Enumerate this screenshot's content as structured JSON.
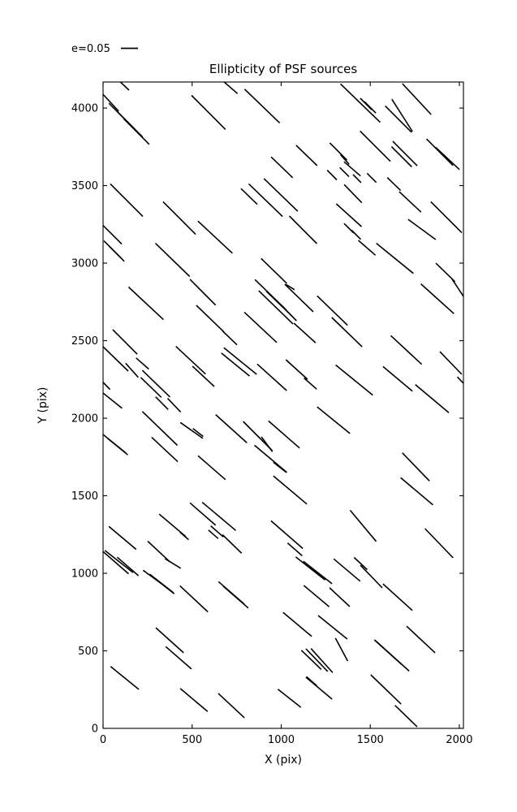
{
  "title": "Ellipticity of PSF sources",
  "legend": {
    "label": "e=0.05",
    "sample_e": 0.05
  },
  "chart_data": {
    "type": "scatter",
    "mark": "whisker-line",
    "title": "Ellipticity of PSF sources",
    "encoding": "Each line segment is a PSF source; segment length is proportional to ellipticity e (legend shows e=0.05); segment orientation is the ellipticity position angle theta (degrees, measured from +X axis).",
    "legend": {
      "label": "e=0.05",
      "sample_e": 0.05
    },
    "axes": {
      "xlabel": "X (pix)",
      "ylabel": "Y (pix)",
      "xlim": [
        0,
        2023
      ],
      "ylim": [
        0,
        4168
      ],
      "xticks": [
        0,
        500,
        1000,
        1500,
        2000
      ],
      "yticks": [
        0,
        500,
        1000,
        1500,
        2000,
        2500,
        3000,
        3500,
        4000
      ],
      "grid": false,
      "frame": true
    },
    "whisker_format": [
      "x_pix",
      "y_pix",
      "ellipticity_e",
      "theta_deg"
    ],
    "whiskers": [
      [
        114,
        4150,
        0.048,
        -47
      ],
      [
        39,
        4040,
        0.078,
        -51
      ],
      [
        105,
        3948,
        0.112,
        -49
      ],
      [
        150,
        3896,
        0.112,
        -49
      ],
      [
        187,
        3849,
        0.112,
        -49
      ],
      [
        592,
        3972,
        0.148,
        -49
      ],
      [
        132,
        3406,
        0.142,
        -49
      ],
      [
        428,
        3291,
        0.142,
        -49
      ],
      [
        629,
        3168,
        0.145,
        -47
      ],
      [
        48,
        3188,
        0.088,
        -49
      ],
      [
        55,
        3086,
        0.078,
        -49
      ],
      [
        77,
        3060,
        0.065,
        -49
      ],
      [
        715,
        4133,
        0.058,
        -45
      ],
      [
        893,
        4013,
        0.15,
        -48
      ],
      [
        1004,
        3618,
        0.092,
        -48
      ],
      [
        1143,
        3694,
        0.09,
        -48
      ],
      [
        1321,
        3720,
        0.075,
        -49
      ],
      [
        1285,
        3568,
        0.042,
        -49
      ],
      [
        1355,
        3587,
        0.04,
        -49
      ],
      [
        913,
        3406,
        0.145,
        -48
      ],
      [
        998,
        3440,
        0.145,
        -48
      ],
      [
        820,
        3430,
        0.07,
        -48
      ],
      [
        1123,
        3215,
        0.12,
        -49
      ],
      [
        1380,
        3309,
        0.105,
        -46
      ],
      [
        1380,
        3225,
        0.042,
        -49
      ],
      [
        1421,
        3183,
        0.04,
        -49
      ],
      [
        1444,
        4032,
        0.17,
        -48
      ],
      [
        1476,
        4026,
        0.05,
        -49
      ],
      [
        1499,
        4005,
        0.05,
        -49
      ],
      [
        1761,
        4058,
        0.13,
        -51
      ],
      [
        1679,
        3953,
        0.118,
        -61
      ],
      [
        1658,
        3929,
        0.115,
        -49
      ],
      [
        1528,
        3754,
        0.132,
        -49
      ],
      [
        1695,
        3707,
        0.107,
        -49
      ],
      [
        1676,
        3686,
        0.088,
        -49
      ],
      [
        1890,
        3715,
        0.115,
        -49
      ],
      [
        1934,
        3675,
        0.1,
        -47
      ],
      [
        1357,
        3668,
        0.04,
        -52
      ],
      [
        1399,
        3608,
        0.067,
        -45
      ],
      [
        1403,
        3448,
        0.078,
        -50
      ],
      [
        1426,
        3545,
        0.035,
        -49
      ],
      [
        1508,
        3550,
        0.04,
        -49
      ],
      [
        1633,
        3510,
        0.057,
        -48
      ],
      [
        1724,
        3395,
        0.092,
        -47
      ],
      [
        1927,
        3296,
        0.135,
        -49
      ],
      [
        1790,
        3217,
        0.105,
        -40
      ],
      [
        390,
        3021,
        0.147,
        -48
      ],
      [
        560,
        2812,
        0.112,
        -49
      ],
      [
        241,
        2741,
        0.147,
        -47
      ],
      [
        601,
        2642,
        0.118,
        -48
      ],
      [
        123,
        2492,
        0.107,
        -49
      ],
      [
        64,
        2390,
        0.118,
        -48
      ],
      [
        221,
        2353,
        0.052,
        -45
      ],
      [
        162,
        2309,
        0.058,
        -52
      ],
      [
        298,
        2223,
        0.118,
        -48
      ],
      [
        269,
        2199,
        0.088,
        -48
      ],
      [
        14,
        2215,
        0.04,
        -50
      ],
      [
        48,
        2118,
        0.082,
        -43
      ],
      [
        492,
        2374,
        0.125,
        -47
      ],
      [
        563,
        2270,
        0.092,
        -47
      ],
      [
        399,
        2084,
        0.058,
        -50
      ],
      [
        330,
        2097,
        0.055,
        -49
      ],
      [
        959,
        2950,
        0.11,
        -48
      ],
      [
        1100,
        2775,
        0.122,
        -48
      ],
      [
        941,
        2796,
        0.135,
        -48
      ],
      [
        1050,
        2846,
        0.032,
        -35
      ],
      [
        970,
        2715,
        0.147,
        -48
      ],
      [
        989,
        2738,
        0.112,
        -48
      ],
      [
        1057,
        2662,
        0.045,
        -49
      ],
      [
        884,
        2586,
        0.137,
        -47
      ],
      [
        1287,
        2694,
        0.13,
        -48
      ],
      [
        1369,
        2555,
        0.13,
        -48
      ],
      [
        1132,
        2550,
        0.09,
        -46
      ],
      [
        711,
        2518,
        0.062,
        -48
      ],
      [
        770,
        2369,
        0.13,
        -43
      ],
      [
        743,
        2346,
        0.112,
        -43
      ],
      [
        948,
        2264,
        0.122,
        -46
      ],
      [
        1087,
        2314,
        0.09,
        -46
      ],
      [
        1164,
        2223,
        0.052,
        -45
      ],
      [
        1410,
        2246,
        0.147,
        -43
      ],
      [
        1481,
        3099,
        0.07,
        -45
      ],
      [
        1638,
        3031,
        0.147,
        -43
      ],
      [
        1922,
        2940,
        0.082,
        -48
      ],
      [
        1993,
        2838,
        0.07,
        -60
      ],
      [
        1877,
        2770,
        0.137,
        -46
      ],
      [
        1702,
        2440,
        0.13,
        -47
      ],
      [
        1952,
        2356,
        0.097,
        -50
      ],
      [
        1654,
        2254,
        0.118,
        -44
      ],
      [
        1847,
        2126,
        0.135,
        -44
      ],
      [
        2014,
        2236,
        0.04,
        -50
      ],
      [
        319,
        1934,
        0.15,
        -48
      ],
      [
        346,
        1798,
        0.11,
        -47
      ],
      [
        497,
        1921,
        0.085,
        -39
      ],
      [
        59,
        1840,
        0.097,
        -43
      ],
      [
        82,
        1817,
        0.08,
        -43
      ],
      [
        533,
        1908,
        0.04,
        -42
      ],
      [
        610,
        1681,
        0.112,
        -45
      ],
      [
        720,
        1932,
        0.13,
        -46
      ],
      [
        560,
        1382,
        0.105,
        -45
      ],
      [
        651,
        1367,
        0.135,
        -44
      ],
      [
        640,
        1270,
        0.052,
        -45
      ],
      [
        619,
        1251,
        0.04,
        -45
      ],
      [
        390,
        1309,
        0.107,
        -44
      ],
      [
        109,
        1228,
        0.11,
        -44
      ],
      [
        312,
        1141,
        0.092,
        -47
      ],
      [
        64,
        1076,
        0.115,
        -45
      ],
      [
        89,
        1076,
        0.11,
        -42
      ],
      [
        139,
        1044,
        0.087,
        -45
      ],
      [
        456,
        1241,
        0.035,
        -45
      ],
      [
        868,
        1885,
        0.127,
        -49
      ],
      [
        1016,
        1895,
        0.127,
        -45
      ],
      [
        920,
        1832,
        0.057,
        -57
      ],
      [
        941,
        1738,
        0.13,
        -44
      ],
      [
        993,
        1683,
        0.052,
        -42
      ],
      [
        1294,
        1987,
        0.13,
        -43
      ],
      [
        1050,
        1537,
        0.135,
        -44
      ],
      [
        1032,
        1249,
        0.13,
        -45
      ],
      [
        1077,
        1154,
        0.06,
        -45
      ],
      [
        724,
        1189,
        0.082,
        -48
      ],
      [
        1164,
        1031,
        0.115,
        -42
      ],
      [
        1205,
        1005,
        0.112,
        -42
      ],
      [
        1369,
        1021,
        0.107,
        -44
      ],
      [
        1756,
        1686,
        0.12,
        -50
      ],
      [
        1761,
        1529,
        0.13,
        -44
      ],
      [
        1460,
        1306,
        0.125,
        -54
      ],
      [
        1886,
        1194,
        0.125,
        -50
      ],
      [
        1446,
        1063,
        0.055,
        -47
      ],
      [
        1506,
        979,
        0.097,
        -50
      ],
      [
        285,
        969,
        0.082,
        -40
      ],
      [
        328,
        935,
        0.092,
        -42
      ],
      [
        346,
        916,
        0.075,
        -42
      ],
      [
        392,
        1063,
        0.057,
        -35
      ],
      [
        510,
        835,
        0.118,
        -47
      ],
      [
        720,
        874,
        0.105,
        -45
      ],
      [
        745,
        846,
        0.102,
        -45
      ],
      [
        374,
        568,
        0.115,
        -46
      ],
      [
        424,
        455,
        0.105,
        -45
      ],
      [
        121,
        325,
        0.112,
        -43
      ],
      [
        510,
        183,
        0.11,
        -44
      ],
      [
        720,
        147,
        0.11,
        -47
      ],
      [
        1198,
        853,
        0.102,
        -44
      ],
      [
        1328,
        846,
        0.085,
        -47
      ],
      [
        1091,
        670,
        0.115,
        -44
      ],
      [
        1289,
        652,
        0.115,
        -43
      ],
      [
        1169,
        442,
        0.085,
        -48
      ],
      [
        1200,
        440,
        0.097,
        -50
      ],
      [
        1228,
        437,
        0.1,
        -52
      ],
      [
        1339,
        508,
        0.08,
        -65
      ],
      [
        1171,
        304,
        0.042,
        -45
      ],
      [
        1046,
        194,
        0.09,
        -42
      ],
      [
        1212,
        259,
        0.105,
        -44
      ],
      [
        1654,
        846,
        0.122,
        -46
      ],
      [
        1784,
        573,
        0.12,
        -47
      ],
      [
        1622,
        469,
        0.142,
        -46
      ],
      [
        1599,
        492,
        0.112,
        -46
      ],
      [
        1588,
        251,
        0.13,
        -48
      ],
      [
        1701,
        79,
        0.095,
        -48
      ]
    ],
    "colors": {
      "whisker": "#000000",
      "frame": "#000000",
      "background": "#ffffff"
    }
  }
}
